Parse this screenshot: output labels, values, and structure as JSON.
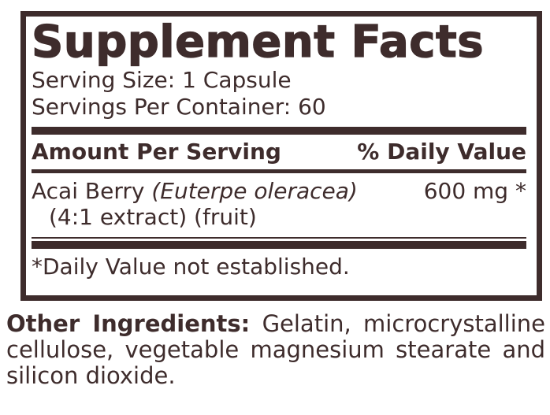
{
  "label": {
    "title": "Supplement Facts",
    "serving_size": "Serving Size: 1 Capsule",
    "servings_per_container": "Servings Per Container: 60",
    "header": {
      "amount": "Amount Per Serving",
      "daily_value": "% Daily Value"
    },
    "ingredients": [
      {
        "name": "Acai Berry",
        "latin_name": "(Euterpe oleracea)",
        "detail": "(4:1 extract) (fruit)",
        "amount": "600 mg",
        "daily_value": "*"
      }
    ],
    "footnote": "*Daily Value not established.",
    "other_ingredients": {
      "label": "Other Ingredients:",
      "text": "Gelatin, microcrystalline cellulose, vegetable magnesium stearate and silicon dioxide."
    },
    "colors": {
      "ink": "#3E2C2C",
      "background": "#FFFFFF"
    }
  }
}
